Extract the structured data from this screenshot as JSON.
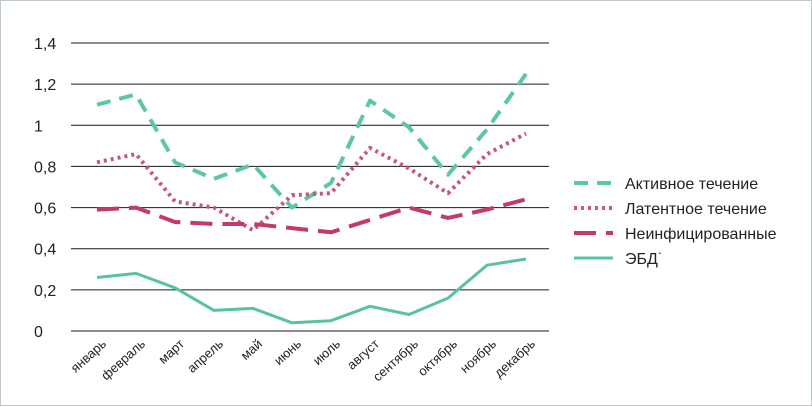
{
  "chart_data": {
    "type": "line",
    "title": "",
    "xlabel": "",
    "ylabel": "",
    "ylim": [
      0,
      1.4
    ],
    "yticks": [
      "0",
      "0,2",
      "0,4",
      "0,6",
      "0,8",
      "1",
      "1,2",
      "1,4"
    ],
    "ytick_values": [
      0,
      0.2,
      0.4,
      0.6,
      0.8,
      1.0,
      1.2,
      1.4
    ],
    "grid": true,
    "legend_position": "right",
    "categories": [
      "январь",
      "февраль",
      "март",
      "апрель",
      "май",
      "июнь",
      "июль",
      "август",
      "сентябрь",
      "октябрь",
      "ноябрь",
      "декабрь"
    ],
    "series": [
      {
        "name": "Активное течение",
        "style": "dashed",
        "color": "#5cc7a6",
        "values": [
          1.1,
          1.15,
          0.82,
          0.74,
          0.81,
          0.6,
          0.72,
          1.12,
          0.99,
          0.76,
          0.98,
          1.25
        ]
      },
      {
        "name": "Латентное течение",
        "style": "dotted",
        "color": "#c8557f",
        "values": [
          0.82,
          0.86,
          0.63,
          0.6,
          0.49,
          0.66,
          0.67,
          0.89,
          0.79,
          0.67,
          0.86,
          0.96
        ]
      },
      {
        "name": "Неинфицированные",
        "style": "long-dashed",
        "color": "#c33a62",
        "values": [
          0.59,
          0.6,
          0.53,
          0.52,
          0.52,
          0.5,
          0.48,
          0.54,
          0.6,
          0.55,
          0.59,
          0.64
        ]
      },
      {
        "name": "ЭБД˙",
        "style": "solid",
        "color": "#59c2a3",
        "values": [
          0.26,
          0.28,
          0.21,
          0.1,
          0.11,
          0.04,
          0.05,
          0.12,
          0.08,
          0.16,
          0.32,
          0.35
        ]
      }
    ]
  }
}
